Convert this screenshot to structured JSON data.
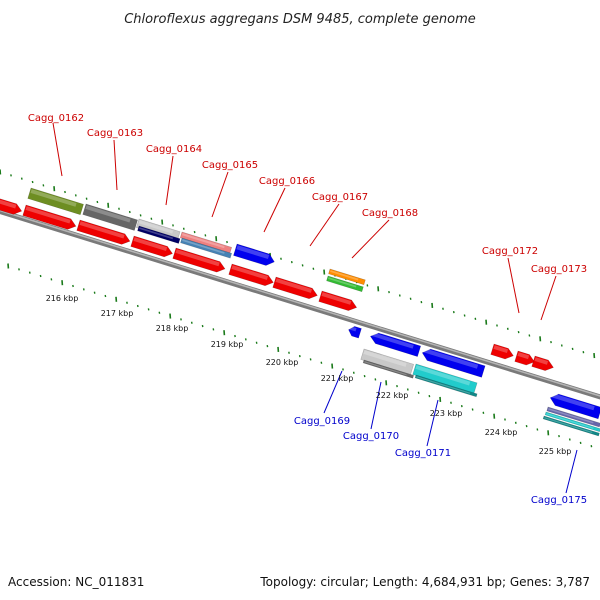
{
  "title": "Chloroflexus aggregans DSM 9485, complete genome",
  "footer": {
    "accession": "Accession: NC_011831",
    "summary": "Topology: circular; Length: 4,684,931 bp; Genes: 3,787"
  },
  "colors": {
    "forward_label": "#cc0000",
    "reverse_label": "#0000cc",
    "tick": "#1a7a1a",
    "backbone": "#8a8a8a"
  },
  "scale_ticks": [
    "216 kbp",
    "217 kbp",
    "218 kbp",
    "219 kbp",
    "220 kbp",
    "221 kbp",
    "222 kbp",
    "223 kbp",
    "224 kbp",
    "225 kbp"
  ],
  "labels_forward": [
    "Cagg_0162",
    "Cagg_0163",
    "Cagg_0164",
    "Cagg_0165",
    "Cagg_0166",
    "Cagg_0167",
    "Cagg_0168",
    "Cagg_0172",
    "Cagg_0173"
  ],
  "labels_reverse": [
    "Cagg_0169",
    "Cagg_0170",
    "Cagg_0171",
    "Cagg_0175"
  ]
}
